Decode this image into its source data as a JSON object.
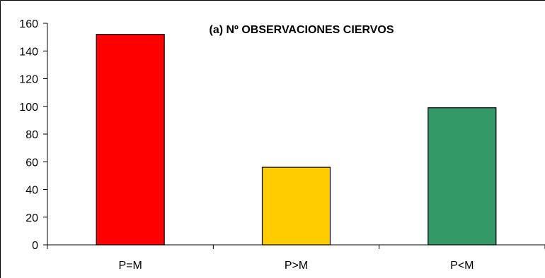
{
  "chart_data": {
    "type": "bar",
    "title": "(a) Nº OBSERVACIONES CIERVOS",
    "categories": [
      "P=M",
      "P>M",
      "P<M"
    ],
    "values": [
      152,
      56,
      99
    ],
    "colors": [
      "#ff0000",
      "#ffcc00",
      "#339966"
    ],
    "bar_outline": "#000000",
    "ylim": [
      0,
      160
    ],
    "yticks": [
      0,
      20,
      40,
      60,
      80,
      100,
      120,
      140,
      160
    ],
    "ytick_labels": [
      "0",
      "20",
      "40",
      "60",
      "80",
      "100",
      "120",
      "140",
      "160"
    ],
    "grid": false,
    "legend": false
  }
}
